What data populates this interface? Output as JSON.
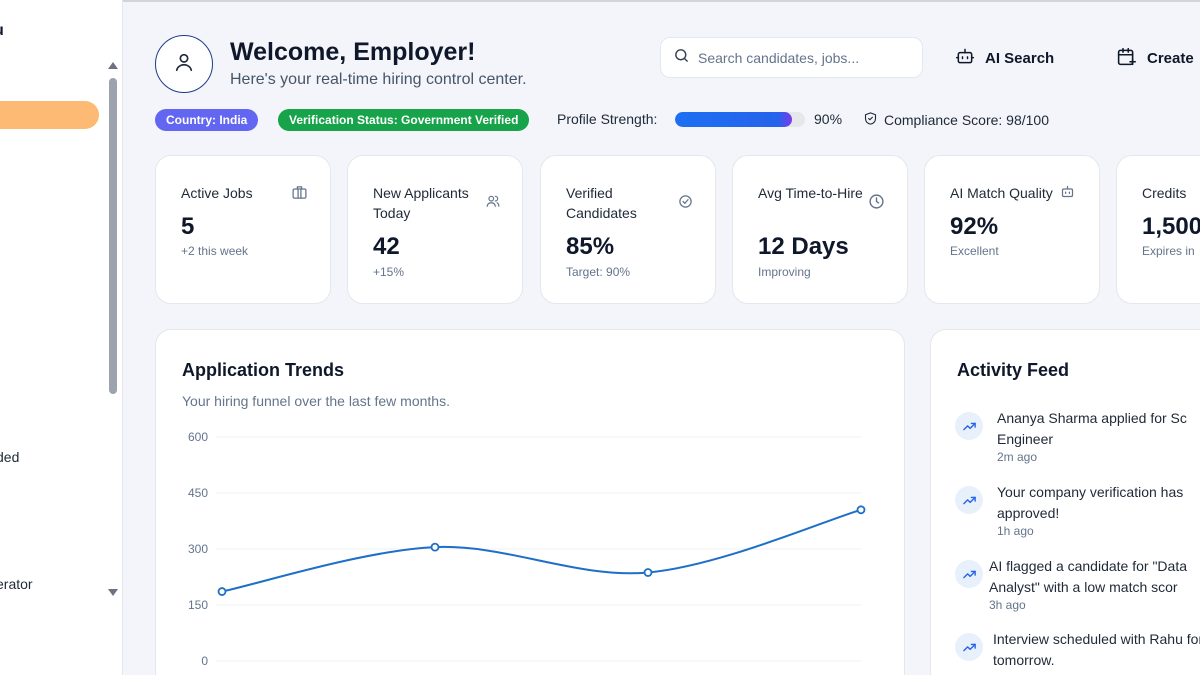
{
  "sidebar": {
    "menu_title": "u",
    "items": [
      {
        "label": "ded"
      },
      {
        "label": "erator"
      }
    ]
  },
  "header": {
    "title": "Welcome, Employer!",
    "subtitle": "Here's your real-time hiring control center.",
    "search_placeholder": "Search candidates, jobs...",
    "ai_search_label": "AI Search",
    "create_label": "Create"
  },
  "status": {
    "country_badge": "Country: India",
    "verification_badge": "Verification Status: Government Verified",
    "profile_strength_label": "Profile Strength:",
    "profile_strength_value": "90%",
    "profile_strength_fraction": 0.9,
    "compliance_label": "Compliance Score: 98/100"
  },
  "stats": [
    {
      "label": "Active Jobs",
      "value": "5",
      "note": "+2 this week",
      "icon": "briefcase-icon"
    },
    {
      "label": "New Applicants Today",
      "value": "42",
      "note": "+15%",
      "icon": "users-icon"
    },
    {
      "label": "Verified Candidates",
      "value": "85%",
      "note": "Target: 90%",
      "icon": "check-circle-icon"
    },
    {
      "label": "Avg Time-to-Hire",
      "value": "12 Days",
      "note": "Improving",
      "icon": "clock-icon"
    },
    {
      "label": "AI Match Quality",
      "value": "92%",
      "note": "Excellent",
      "icon": "bot-icon"
    },
    {
      "label": "Credits",
      "value": "1,500",
      "note": "Expires in",
      "icon": ""
    }
  ],
  "chart": {
    "title": "Application Trends",
    "subtitle": "Your hiring funnel over the last few months."
  },
  "chart_data": {
    "type": "line",
    "title": "Application Trends",
    "subtitle": "Your hiring funnel over the last few months.",
    "y_ticks": [
      "600",
      "450",
      "300",
      "150",
      "0"
    ],
    "ylim": [
      0,
      600
    ],
    "series": [
      {
        "values": [
          186,
          305,
          237,
          405
        ],
        "color": "#1d6fc7"
      }
    ],
    "grid": true,
    "smooth": true
  },
  "feed": {
    "title": "Activity Feed",
    "items": [
      {
        "text": "Ananya Sharma applied for Sc Engineer",
        "time": "2m ago"
      },
      {
        "text": "Your company verification has approved!",
        "time": "1h ago"
      },
      {
        "text": "AI flagged a candidate for \"Data Analyst\" with a low match scor",
        "time": "3h ago"
      },
      {
        "text": "Interview scheduled with Rahu for tomorrow.",
        "time": ""
      }
    ]
  },
  "colors": {
    "accent_orange": "#fdba74",
    "badge_purple": "#6366f1",
    "badge_green": "#16a34a",
    "line_blue": "#1d6fc7"
  }
}
